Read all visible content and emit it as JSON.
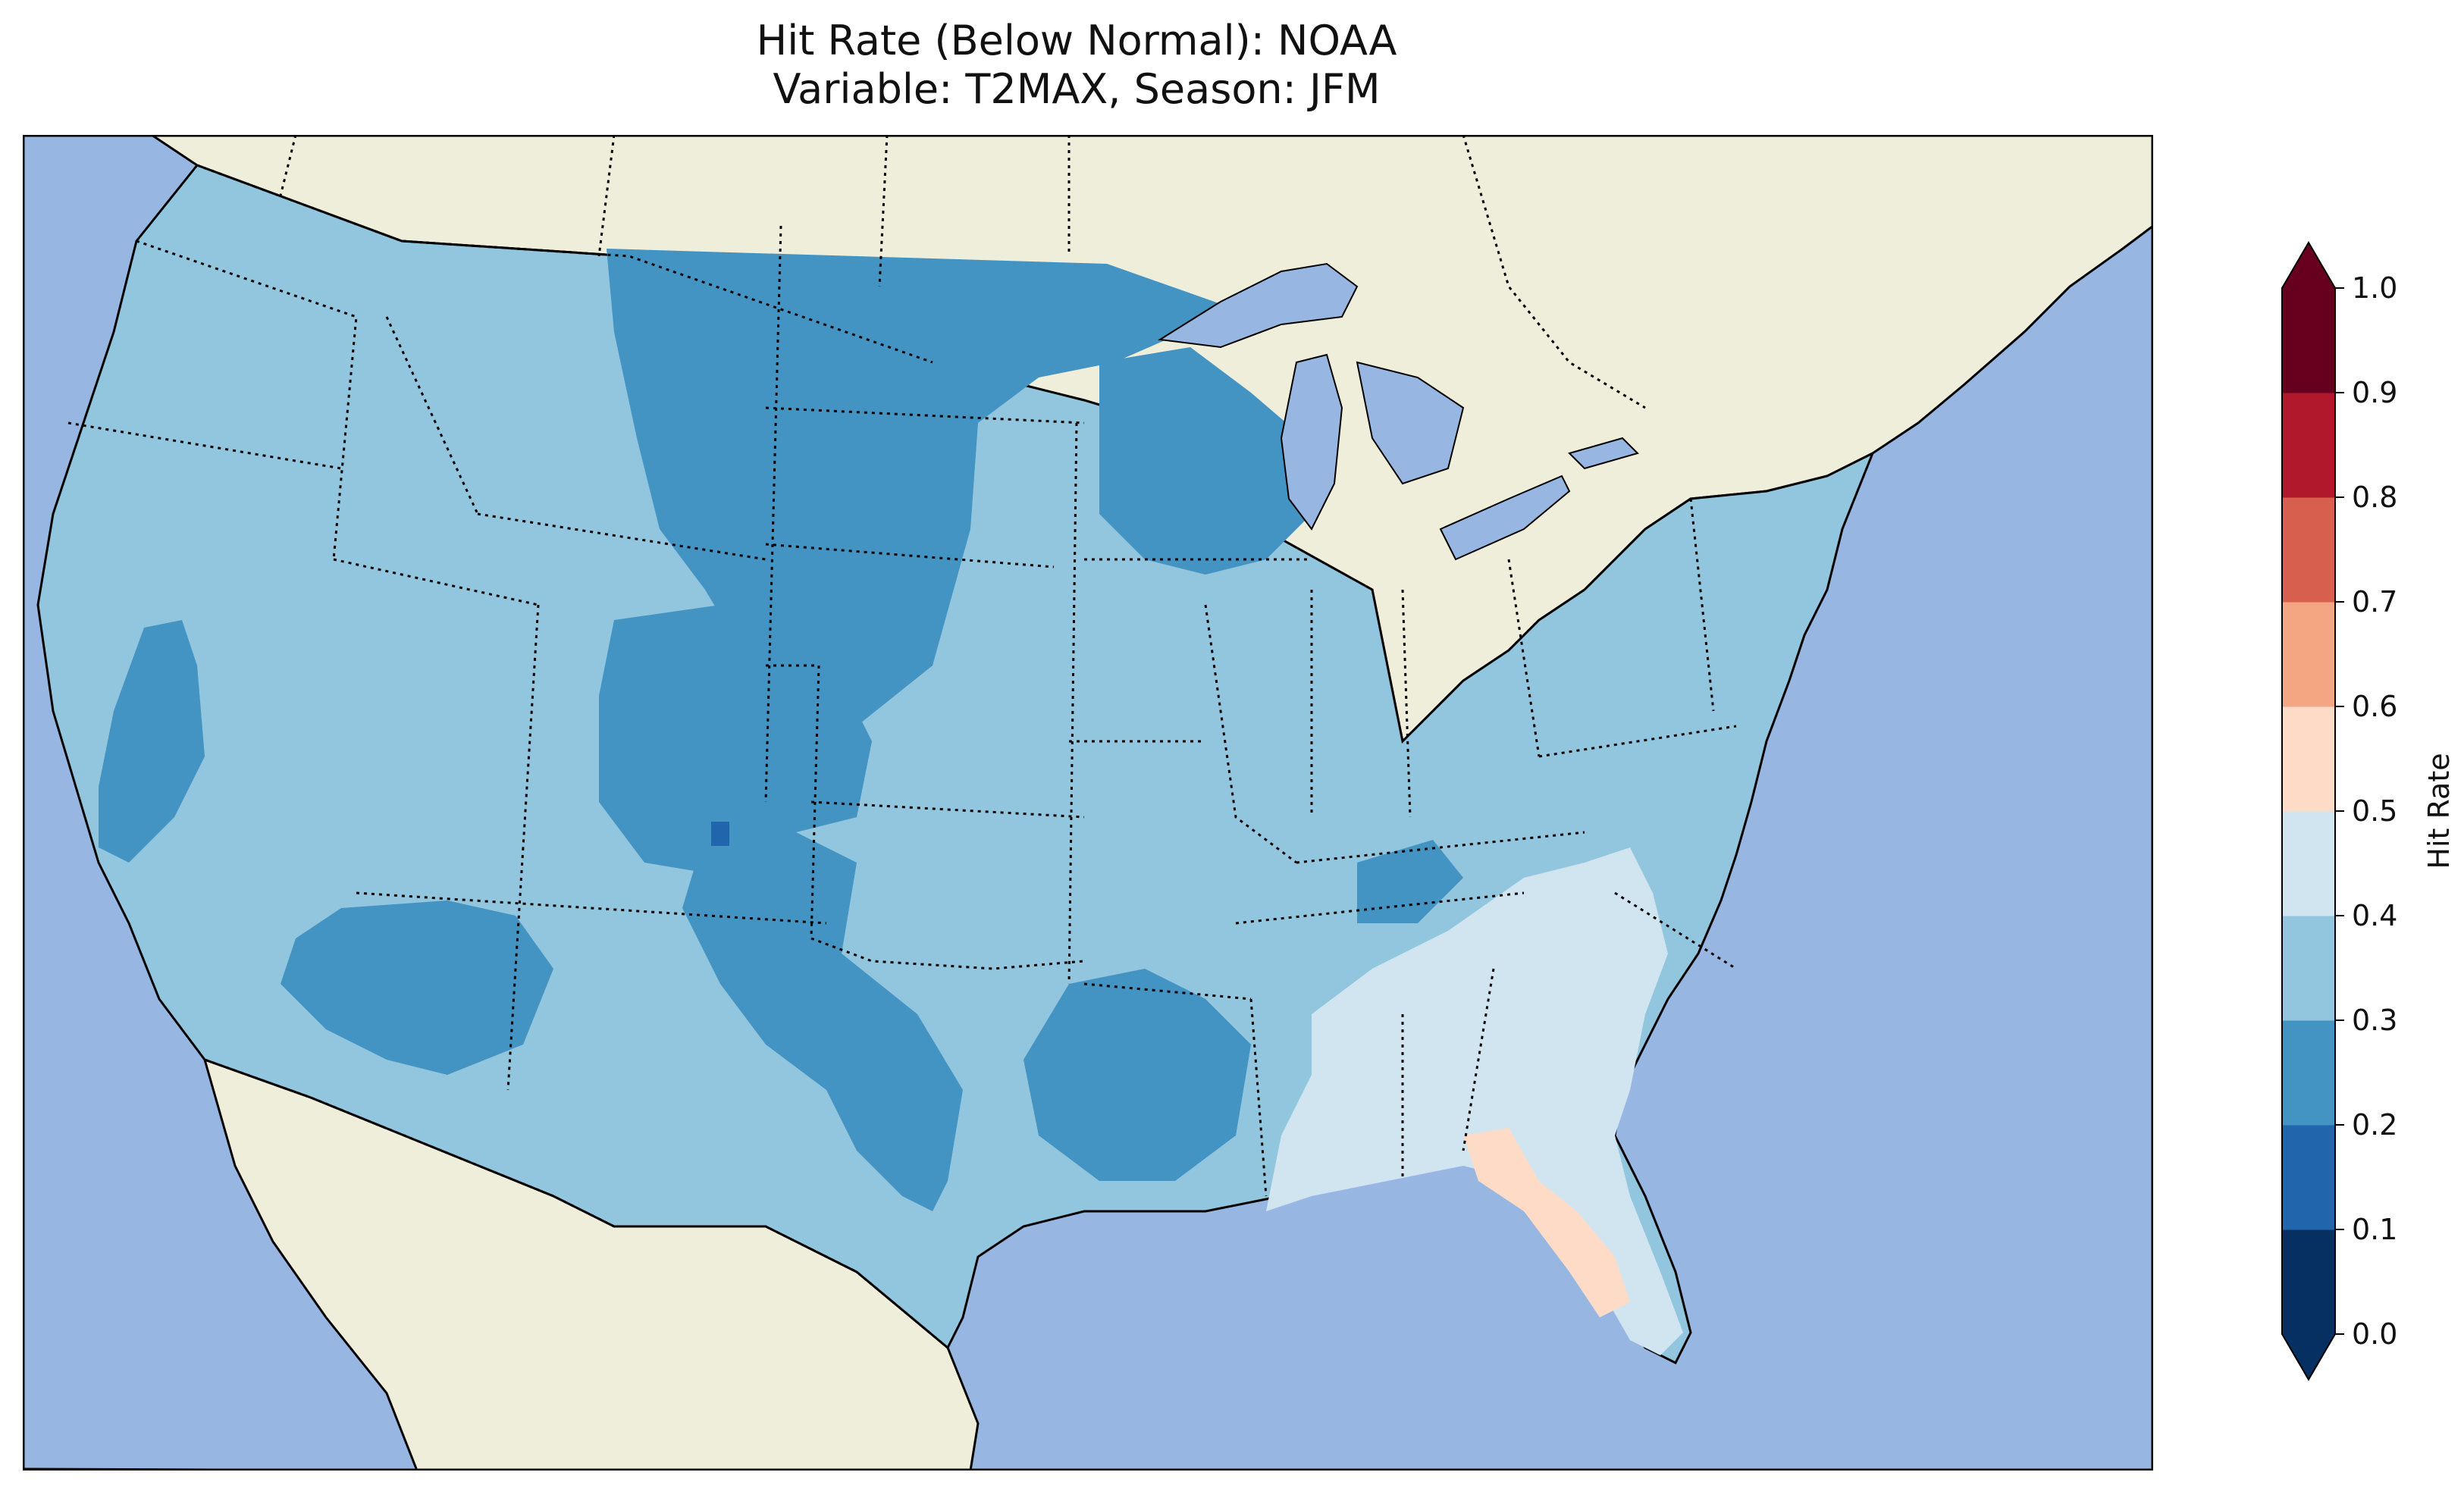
{
  "title": {
    "line1": "Hit Rate (Below Normal): NOAA",
    "line2": "Variable: T2MAX, Season: JFM"
  },
  "colors": {
    "ocean": "#97b6e1",
    "land": "#efeedb",
    "lakes": "#97b6e1"
  },
  "colorbar": {
    "label": "Hit Rate",
    "ticks": [
      "0.0",
      "0.1",
      "0.2",
      "0.3",
      "0.4",
      "0.5",
      "0.6",
      "0.7",
      "0.8",
      "0.9",
      "1.0"
    ],
    "bins": [
      {
        "min": 0.0,
        "max": 0.1,
        "color": "#053061"
      },
      {
        "min": 0.1,
        "max": 0.2,
        "color": "#2166ac"
      },
      {
        "min": 0.2,
        "max": 0.3,
        "color": "#4393c3"
      },
      {
        "min": 0.3,
        "max": 0.4,
        "color": "#92c5de"
      },
      {
        "min": 0.4,
        "max": 0.5,
        "color": "#d1e5f0"
      },
      {
        "min": 0.5,
        "max": 0.6,
        "color": "#fddbc7"
      },
      {
        "min": 0.6,
        "max": 0.7,
        "color": "#f4a582"
      },
      {
        "min": 0.7,
        "max": 0.8,
        "color": "#d6604d"
      },
      {
        "min": 0.8,
        "max": 0.9,
        "color": "#b2182b"
      },
      {
        "min": 0.9,
        "max": 1.0,
        "color": "#67001f"
      }
    ],
    "extend": "both"
  },
  "regions": [
    {
      "name": "conus-background",
      "hit_rate": 0.35
    },
    {
      "name": "northern-plains",
      "hit_rate": 0.25
    },
    {
      "name": "colorado-rockies",
      "hit_rate": 0.25
    },
    {
      "name": "southern-plains-texas",
      "hit_rate": 0.25
    },
    {
      "name": "southwest-arizona",
      "hit_rate": 0.25
    },
    {
      "name": "california-central",
      "hit_rate": 0.25
    },
    {
      "name": "upper-midwest",
      "hit_rate": 0.25
    },
    {
      "name": "lower-mississippi",
      "hit_rate": 0.25
    },
    {
      "name": "southeast",
      "hit_rate": 0.45
    },
    {
      "name": "florida",
      "hit_rate": 0.55
    },
    {
      "name": "new-mexico-spot",
      "hit_rate": 0.15
    }
  ]
}
